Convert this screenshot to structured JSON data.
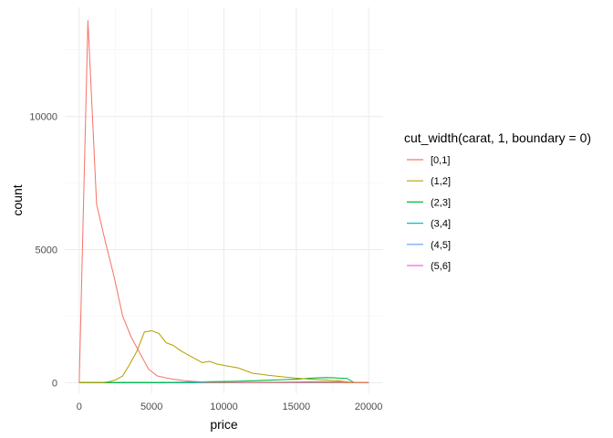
{
  "chart_data": {
    "type": "line",
    "title": "",
    "xlabel": "price",
    "ylabel": "count",
    "xlim": [
      -1000,
      21000
    ],
    "ylim": [
      -400,
      14100
    ],
    "x_ticks": [
      0,
      5000,
      10000,
      15000,
      20000
    ],
    "x_tick_labels": [
      "0",
      "5000",
      "10000",
      "15000",
      "20000"
    ],
    "y_ticks": [
      0,
      5000,
      10000
    ],
    "y_tick_labels": [
      "0",
      "5000",
      "10000"
    ],
    "grid": true,
    "legend": {
      "title": "cut_width(carat, 1, boundary = 0)",
      "placement": "right"
    },
    "series": [
      {
        "name": "[0,1]",
        "color": "#F8766D",
        "x": [
          0,
          600,
          1200,
          1800,
          2400,
          3000,
          3600,
          4200,
          4800,
          5400,
          6000,
          6600,
          7200,
          7800,
          8400,
          9000,
          20000
        ],
        "y": [
          0,
          13600,
          6700,
          5300,
          4000,
          2500,
          1700,
          1100,
          500,
          250,
          180,
          120,
          80,
          50,
          30,
          10,
          0
        ]
      },
      {
        "name": "(1,2]",
        "color": "#B79F00",
        "x": [
          0,
          1500,
          2000,
          2500,
          3000,
          3500,
          4000,
          4500,
          5000,
          5500,
          6000,
          6500,
          7000,
          7500,
          8000,
          8500,
          9000,
          9500,
          10000,
          10500,
          11000,
          11500,
          12000,
          12500,
          13000,
          14000,
          15000,
          16000,
          17000,
          18000,
          18500,
          19000,
          20000
        ],
        "y": [
          0,
          0,
          30,
          100,
          250,
          700,
          1200,
          1900,
          1950,
          1850,
          1500,
          1400,
          1200,
          1050,
          900,
          750,
          800,
          700,
          650,
          600,
          550,
          450,
          350,
          320,
          280,
          220,
          170,
          130,
          100,
          60,
          30,
          0,
          0
        ]
      },
      {
        "name": "(2,3]",
        "color": "#00BA38",
        "x": [
          0,
          5000,
          6000,
          7000,
          8000,
          9000,
          10000,
          11000,
          12000,
          13000,
          14000,
          15000,
          16000,
          16500,
          17000,
          17500,
          18000,
          18500,
          19000,
          20000
        ],
        "y": [
          0,
          0,
          5,
          15,
          25,
          35,
          45,
          55,
          70,
          90,
          110,
          130,
          170,
          180,
          190,
          185,
          170,
          160,
          0,
          0
        ]
      },
      {
        "name": "(3,4]",
        "color": "#00BFC4",
        "x": [
          0,
          10000,
          11000,
          12000,
          13000,
          14000,
          15000,
          16000,
          17000,
          18000,
          18500,
          19000,
          20000
        ],
        "y": [
          0,
          0,
          5,
          10,
          15,
          20,
          25,
          30,
          30,
          25,
          15,
          0,
          0
        ]
      },
      {
        "name": "(4,5]",
        "color": "#619CFF",
        "x": [
          0,
          12000,
          14000,
          16000,
          17000,
          18000,
          19000,
          20000
        ],
        "y": [
          0,
          0,
          3,
          5,
          6,
          4,
          0,
          0
        ]
      },
      {
        "name": "(5,6]",
        "color": "#F564E3",
        "x": [
          0,
          20000
        ],
        "y": [
          0,
          0
        ]
      }
    ]
  }
}
